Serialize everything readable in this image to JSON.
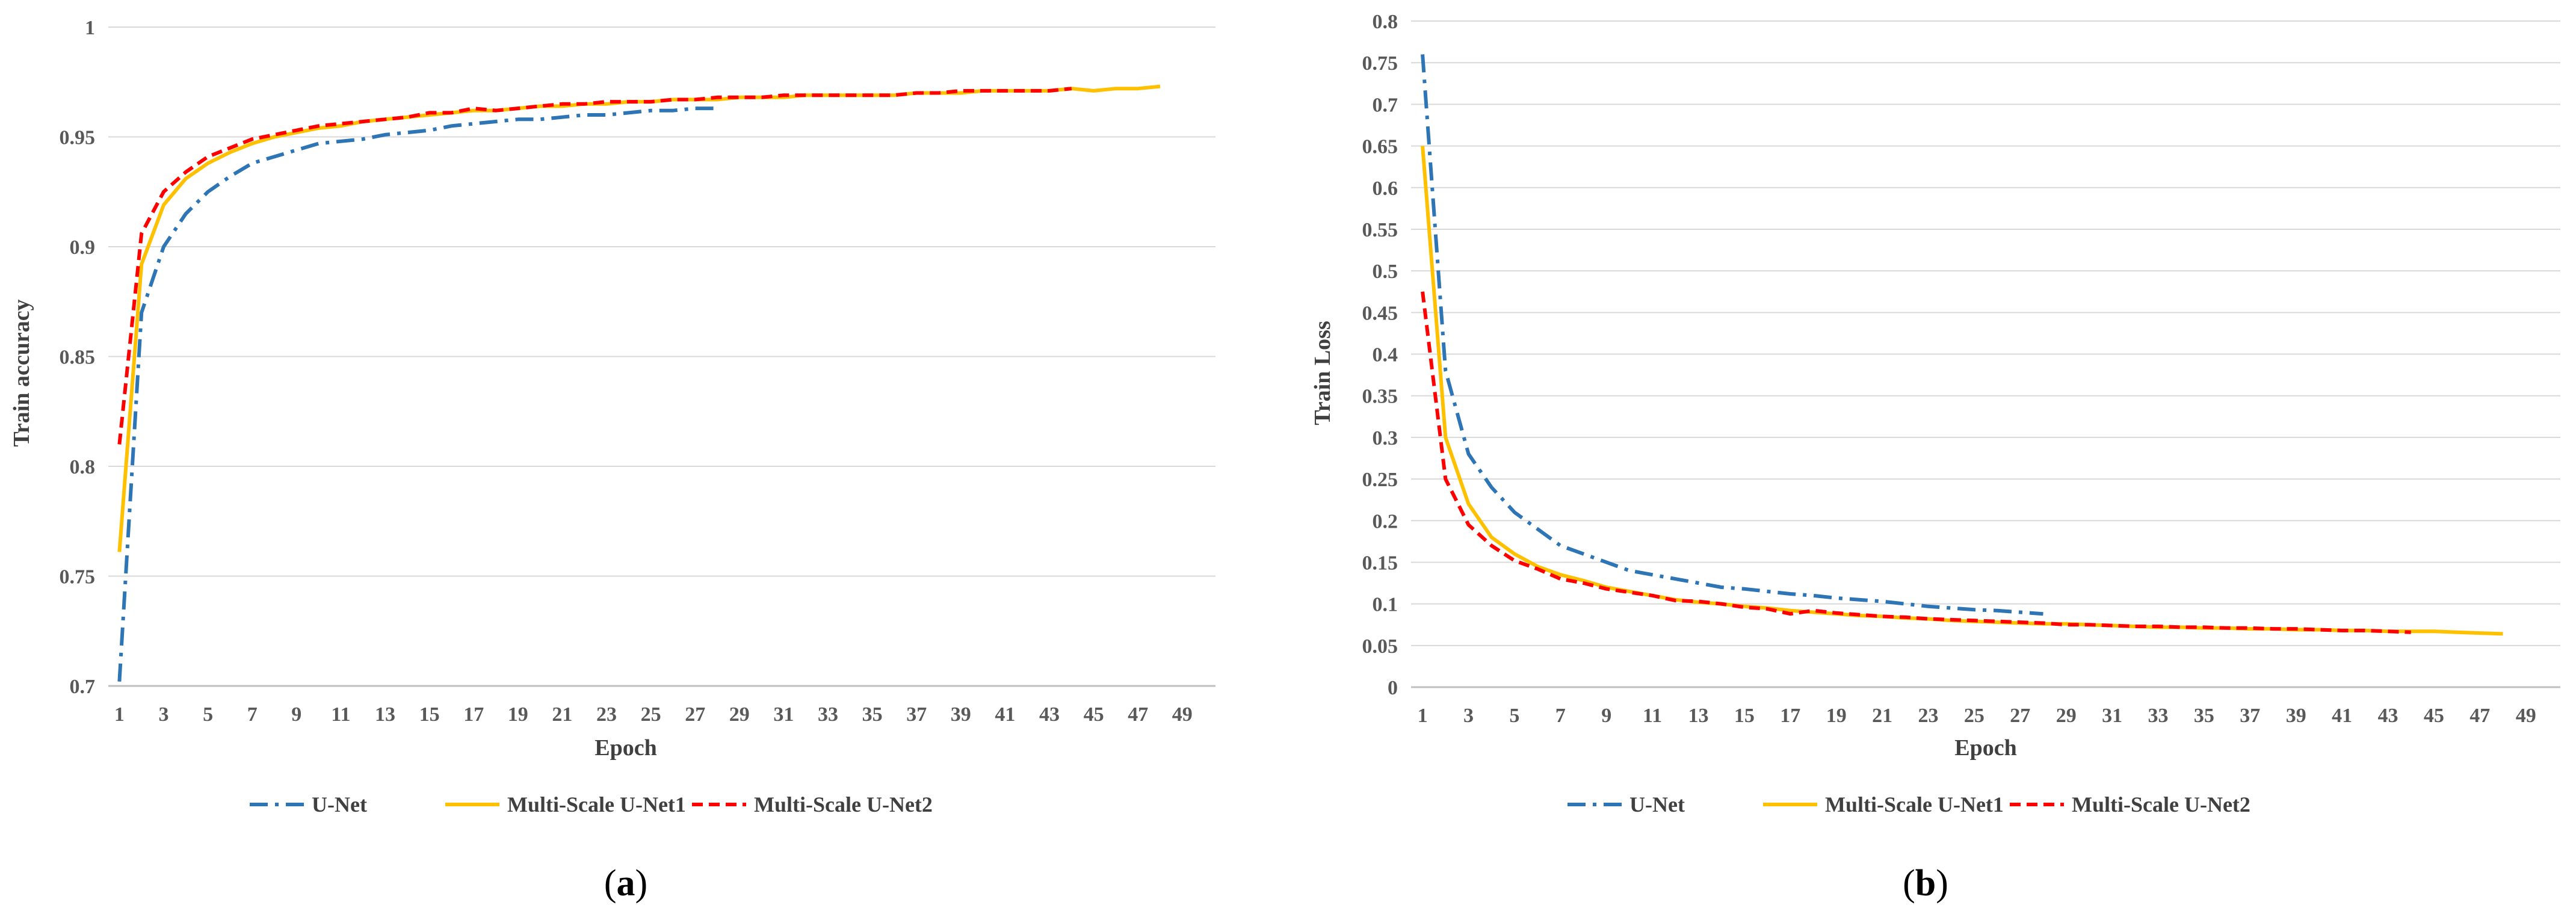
{
  "chart_data": [
    {
      "type": "line",
      "panel_label": "a",
      "xlabel": "Epoch",
      "ylabel": "Train accuracy",
      "ylim": [
        0.7,
        1
      ],
      "y_ticks": [
        0.7,
        0.75,
        0.8,
        0.85,
        0.9,
        0.95,
        1
      ],
      "y_tick_labels": [
        "0.7",
        "0.75",
        "0.8",
        "0.85",
        "0.9",
        "0.95",
        "1"
      ],
      "x_ticks": [
        1,
        3,
        5,
        7,
        9,
        11,
        13,
        15,
        17,
        19,
        21,
        23,
        25,
        27,
        29,
        31,
        33,
        35,
        37,
        39,
        41,
        43,
        45,
        47,
        49
      ],
      "x_max": 50,
      "legend_position": "bottom",
      "series": [
        {
          "name": "U-Net",
          "color": "#2E75B6",
          "style": "dashdot",
          "values": [
            0.702,
            0.87,
            0.9,
            0.915,
            0.925,
            0.932,
            0.938,
            0.941,
            0.944,
            0.947,
            0.948,
            0.949,
            0.951,
            0.952,
            0.953,
            0.955,
            0.956,
            0.957,
            0.958,
            0.958,
            0.959,
            0.96,
            0.96,
            0.961,
            0.962,
            0.962,
            0.963,
            0.963
          ]
        },
        {
          "name": "Multi-Scale U-Net1",
          "color": "#FFC000",
          "style": "solid",
          "values": [
            0.761,
            0.892,
            0.919,
            0.931,
            0.938,
            0.943,
            0.947,
            0.95,
            0.952,
            0.954,
            0.955,
            0.957,
            0.958,
            0.959,
            0.96,
            0.961,
            0.962,
            0.962,
            0.963,
            0.964,
            0.964,
            0.965,
            0.965,
            0.966,
            0.966,
            0.967,
            0.967,
            0.967,
            0.968,
            0.968,
            0.968,
            0.969,
            0.969,
            0.969,
            0.969,
            0.969,
            0.97,
            0.97,
            0.97,
            0.971,
            0.971,
            0.971,
            0.971,
            0.972,
            0.971,
            0.972,
            0.972,
            0.973
          ]
        },
        {
          "name": "Multi-Scale U-Net2",
          "color": "#FF0000",
          "style": "dashed",
          "values": [
            0.81,
            0.906,
            0.925,
            0.934,
            0.941,
            0.945,
            0.949,
            0.951,
            0.953,
            0.955,
            0.956,
            0.957,
            0.958,
            0.959,
            0.961,
            0.961,
            0.963,
            0.962,
            0.963,
            0.964,
            0.965,
            0.965,
            0.966,
            0.966,
            0.966,
            0.967,
            0.967,
            0.968,
            0.968,
            0.968,
            0.969,
            0.969,
            0.969,
            0.969,
            0.969,
            0.969,
            0.97,
            0.97,
            0.971,
            0.971,
            0.971,
            0.971,
            0.971,
            0.972
          ]
        }
      ]
    },
    {
      "type": "line",
      "panel_label": "b",
      "xlabel": "Epoch",
      "ylabel": "Train Loss",
      "ylim": [
        0,
        0.8
      ],
      "y_ticks": [
        0,
        0.05,
        0.1,
        0.15,
        0.2,
        0.25,
        0.3,
        0.35,
        0.4,
        0.45,
        0.5,
        0.55,
        0.6,
        0.65,
        0.7,
        0.75,
        0.8
      ],
      "y_tick_labels": [
        "0",
        "0.05",
        "0.1",
        "0.15",
        "0.2",
        "0.25",
        "0.3",
        "0.35",
        "0.4",
        "0.45",
        "0.5",
        "0.55",
        "0.6",
        "0.65",
        "0.7",
        "0.75",
        "0.8"
      ],
      "x_ticks": [
        1,
        3,
        5,
        7,
        9,
        11,
        13,
        15,
        17,
        19,
        21,
        23,
        25,
        27,
        29,
        31,
        33,
        35,
        37,
        39,
        41,
        43,
        45,
        47,
        49
      ],
      "x_max": 50,
      "legend_position": "bottom",
      "series": [
        {
          "name": "U-Net",
          "color": "#2E75B6",
          "style": "dashdot",
          "values": [
            0.76,
            0.38,
            0.28,
            0.24,
            0.21,
            0.19,
            0.17,
            0.16,
            0.15,
            0.14,
            0.135,
            0.13,
            0.125,
            0.12,
            0.118,
            0.115,
            0.112,
            0.11,
            0.107,
            0.105,
            0.103,
            0.1,
            0.097,
            0.095,
            0.093,
            0.092,
            0.09,
            0.088
          ]
        },
        {
          "name": "Multi-Scale U-Net1",
          "color": "#FFC000",
          "style": "solid",
          "values": [
            0.65,
            0.3,
            0.22,
            0.18,
            0.16,
            0.145,
            0.135,
            0.128,
            0.12,
            0.115,
            0.11,
            0.105,
            0.102,
            0.1,
            0.097,
            0.095,
            0.092,
            0.09,
            0.088,
            0.086,
            0.085,
            0.083,
            0.082,
            0.08,
            0.079,
            0.078,
            0.077,
            0.076,
            0.076,
            0.075,
            0.074,
            0.073,
            0.072,
            0.072,
            0.071,
            0.071,
            0.07,
            0.07,
            0.069,
            0.069,
            0.068,
            0.068,
            0.067,
            0.067,
            0.067,
            0.066,
            0.065,
            0.064
          ]
        },
        {
          "name": "Multi-Scale U-Net2",
          "color": "#FF0000",
          "style": "dashed",
          "values": [
            0.475,
            0.25,
            0.195,
            0.17,
            0.152,
            0.142,
            0.13,
            0.125,
            0.118,
            0.114,
            0.11,
            0.104,
            0.103,
            0.1,
            0.096,
            0.094,
            0.088,
            0.092,
            0.089,
            0.087,
            0.085,
            0.084,
            0.082,
            0.081,
            0.08,
            0.079,
            0.078,
            0.077,
            0.075,
            0.075,
            0.074,
            0.073,
            0.073,
            0.072,
            0.072,
            0.071,
            0.071,
            0.07,
            0.07,
            0.069,
            0.068,
            0.068,
            0.067,
            0.066
          ]
        }
      ]
    }
  ]
}
